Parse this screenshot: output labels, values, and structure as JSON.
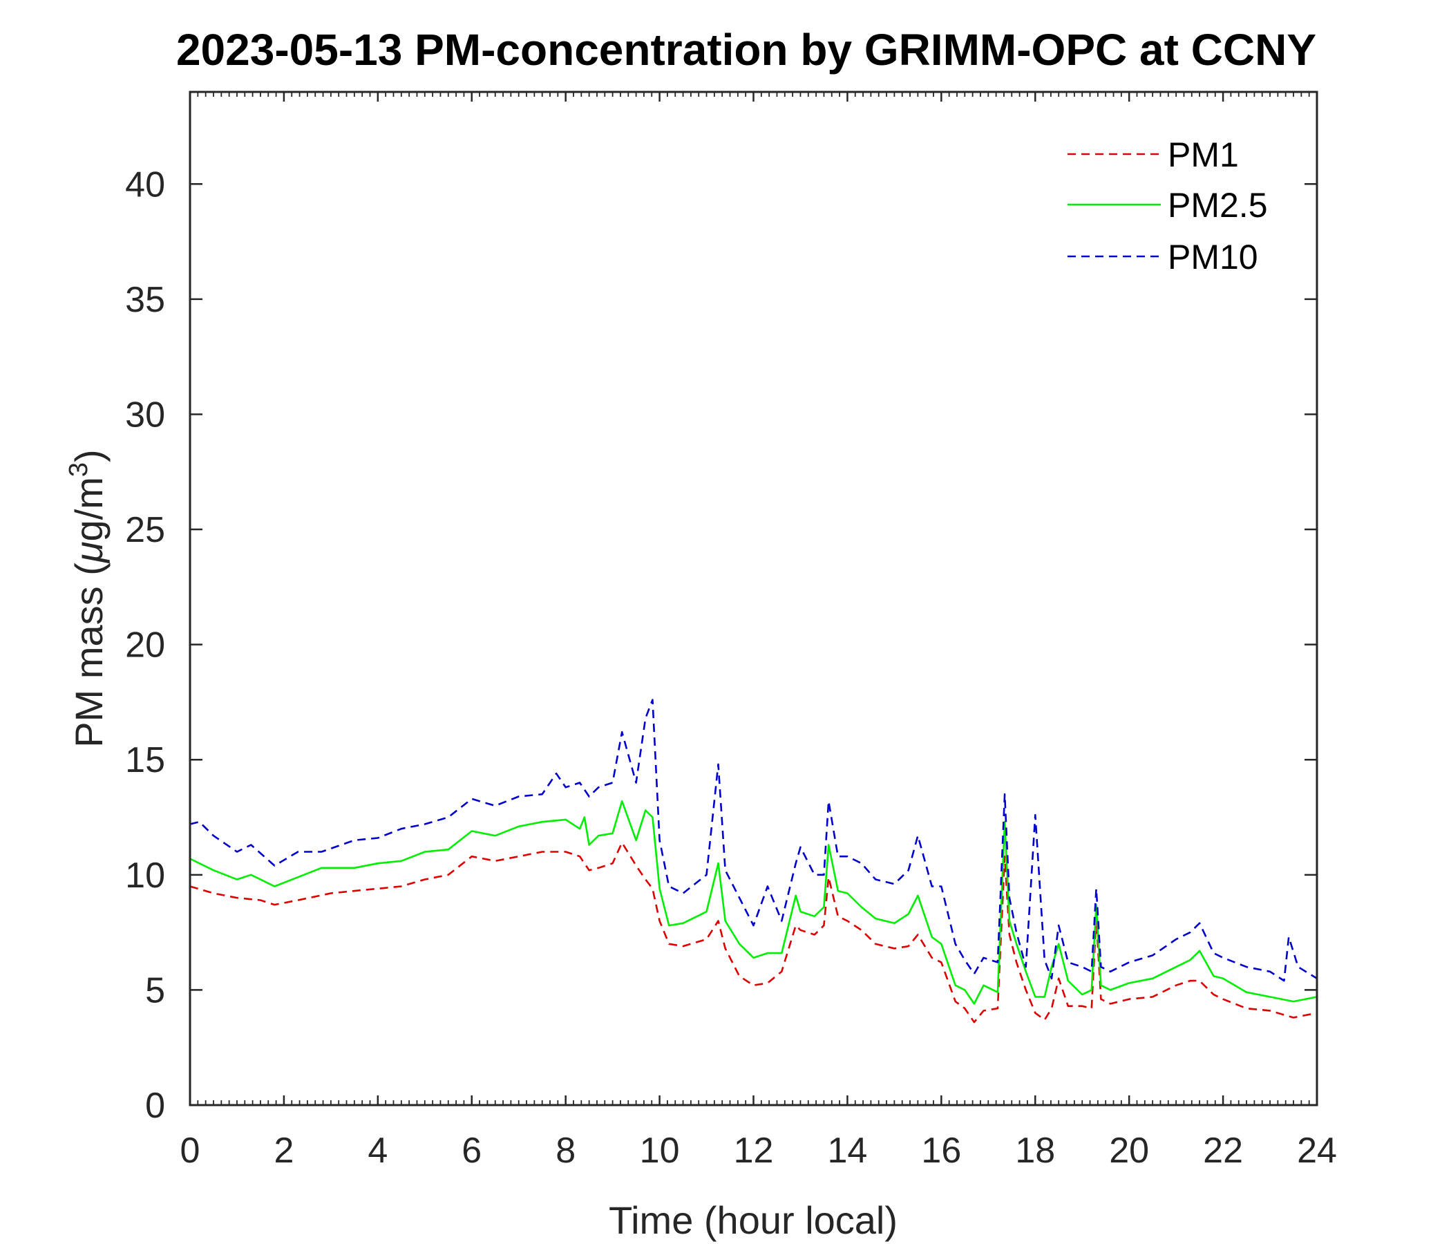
{
  "chart_data": {
    "type": "line",
    "title": "2023-05-13 PM-concentration by GRIMM-OPC at CCNY",
    "xlabel": "Time (hour local)",
    "ylabel_main": "PM mass (",
    "ylabel_mu": "μ",
    "ylabel_unit": "g/m",
    "ylabel_sup": "3",
    "ylabel_close": ")",
    "xlim": [
      0,
      24
    ],
    "ylim": [
      0,
      44
    ],
    "xticks": [
      "0",
      "2",
      "4",
      "6",
      "8",
      "10",
      "12",
      "14",
      "16",
      "18",
      "20",
      "22",
      "24"
    ],
    "yticks": [
      "0",
      "5",
      "10",
      "15",
      "20",
      "25",
      "30",
      "35",
      "40"
    ],
    "legend_position": "top-right",
    "series": [
      {
        "name": "PM1",
        "color": "#dd0000",
        "style": "dashed",
        "x": [
          0,
          0.5,
          1,
          1.5,
          1.8,
          2.3,
          3,
          3.5,
          4,
          4.5,
          5,
          5.5,
          6,
          6.5,
          7,
          7.5,
          8,
          8.3,
          8.5,
          8.7,
          9,
          9.2,
          9.5,
          9.7,
          9.85,
          10,
          10.2,
          10.5,
          11,
          11.25,
          11.4,
          11.7,
          12,
          12.3,
          12.6,
          12.9,
          13,
          13.3,
          13.5,
          13.6,
          13.8,
          14,
          14.3,
          14.6,
          15,
          15.3,
          15.5,
          15.8,
          16,
          16.3,
          16.5,
          16.7,
          16.9,
          17.2,
          17.35,
          17.45,
          17.6,
          17.8,
          18,
          18.2,
          18.35,
          18.5,
          18.7,
          19,
          19.2,
          19.3,
          19.4,
          19.6,
          20,
          20.5,
          21,
          21.3,
          21.5,
          21.8,
          22,
          22.5,
          23,
          23.5,
          24
        ],
        "y": [
          9.5,
          9.2,
          9.0,
          8.9,
          8.7,
          8.9,
          9.2,
          9.3,
          9.4,
          9.5,
          9.8,
          10.0,
          10.8,
          10.6,
          10.8,
          11.0,
          11.0,
          10.8,
          10.2,
          10.3,
          10.5,
          11.4,
          10.4,
          9.8,
          9.4,
          8.0,
          7.0,
          6.9,
          7.2,
          8.0,
          6.8,
          5.6,
          5.2,
          5.3,
          5.8,
          7.8,
          7.6,
          7.4,
          7.8,
          9.9,
          8.2,
          8.0,
          7.6,
          7.0,
          6.8,
          6.9,
          7.4,
          6.4,
          6.2,
          4.5,
          4.2,
          3.6,
          4.1,
          4.2,
          10.8,
          7.4,
          6.2,
          5.0,
          4.0,
          3.7,
          4.2,
          5.5,
          4.3,
          4.3,
          4.2,
          8.1,
          4.6,
          4.4,
          4.6,
          4.7,
          5.2,
          5.4,
          5.4,
          4.8,
          4.6,
          4.2,
          4.1,
          3.8,
          4.0
        ]
      },
      {
        "name": "PM2.5",
        "color": "#00ee00",
        "style": "solid",
        "x": [
          0,
          0.5,
          1,
          1.3,
          1.8,
          2.3,
          2.8,
          3.5,
          4,
          4.5,
          5,
          5.5,
          6,
          6.5,
          7,
          7.5,
          8,
          8.3,
          8.4,
          8.5,
          8.7,
          9,
          9.2,
          9.5,
          9.7,
          9.85,
          10,
          10.2,
          10.5,
          11,
          11.25,
          11.4,
          11.7,
          12,
          12.3,
          12.6,
          12.9,
          13,
          13.3,
          13.5,
          13.6,
          13.8,
          14,
          14.3,
          14.6,
          15,
          15.3,
          15.5,
          15.8,
          16,
          16.3,
          16.5,
          16.7,
          16.9,
          17.2,
          17.35,
          17.45,
          17.6,
          17.8,
          18,
          18.2,
          18.35,
          18.5,
          18.7,
          19,
          19.2,
          19.3,
          19.4,
          19.6,
          20,
          20.5,
          21,
          21.3,
          21.5,
          21.8,
          22,
          22.5,
          23,
          23.5,
          24
        ],
        "y": [
          10.7,
          10.2,
          9.8,
          10.0,
          9.5,
          9.9,
          10.3,
          10.3,
          10.5,
          10.6,
          11.0,
          11.1,
          11.9,
          11.7,
          12.1,
          12.3,
          12.4,
          12.0,
          12.5,
          11.3,
          11.7,
          11.8,
          13.2,
          11.5,
          12.8,
          12.5,
          9.4,
          7.8,
          7.9,
          8.4,
          10.5,
          8.0,
          7.0,
          6.4,
          6.6,
          6.6,
          9.1,
          8.4,
          8.2,
          8.6,
          11.3,
          9.3,
          9.2,
          8.6,
          8.1,
          7.9,
          8.3,
          9.1,
          7.3,
          7.0,
          5.2,
          5.0,
          4.4,
          5.2,
          4.9,
          12.3,
          8.0,
          7.0,
          5.8,
          4.7,
          4.7,
          6.0,
          7.0,
          5.4,
          4.8,
          5.0,
          8.7,
          5.2,
          5.0,
          5.3,
          5.5,
          6.0,
          6.3,
          6.7,
          5.6,
          5.5,
          4.9,
          4.7,
          4.5,
          4.7
        ]
      },
      {
        "name": "PM10",
        "color": "#0000cc",
        "style": "dashed",
        "x": [
          0,
          0.2,
          0.5,
          1,
          1.3,
          1.8,
          2.3,
          2.8,
          3.5,
          4,
          4.5,
          5,
          5.5,
          6,
          6.5,
          7,
          7.5,
          7.8,
          8,
          8.3,
          8.5,
          8.7,
          9,
          9.2,
          9.5,
          9.7,
          9.85,
          10,
          10.2,
          10.5,
          11,
          11.25,
          11.4,
          11.7,
          12,
          12.3,
          12.6,
          12.9,
          13,
          13.3,
          13.5,
          13.6,
          13.8,
          14,
          14.3,
          14.6,
          15,
          15.3,
          15.5,
          15.8,
          16,
          16.3,
          16.5,
          16.7,
          16.9,
          17.2,
          17.35,
          17.45,
          17.6,
          17.8,
          18,
          18.2,
          18.35,
          18.5,
          18.7,
          19,
          19.2,
          19.3,
          19.4,
          19.6,
          20,
          20.5,
          21,
          21.3,
          21.5,
          21.8,
          22,
          22.5,
          23,
          23.3,
          23.4,
          23.6,
          24
        ],
        "y": [
          12.2,
          12.3,
          11.7,
          11.0,
          11.3,
          10.4,
          11.0,
          11.0,
          11.5,
          11.6,
          12.0,
          12.2,
          12.5,
          13.3,
          13.0,
          13.4,
          13.5,
          14.4,
          13.8,
          14.0,
          13.4,
          13.8,
          14.0,
          16.2,
          14.0,
          16.8,
          17.6,
          11.5,
          9.5,
          9.2,
          10.0,
          14.8,
          10.2,
          9.0,
          7.8,
          9.5,
          8.0,
          10.5,
          11.2,
          10.0,
          10.0,
          13.2,
          10.8,
          10.8,
          10.5,
          9.8,
          9.6,
          10.2,
          11.7,
          9.5,
          9.5,
          7.0,
          6.3,
          5.7,
          6.4,
          6.2,
          13.5,
          9.0,
          7.5,
          6.0,
          12.6,
          6.3,
          5.5,
          7.8,
          6.2,
          6.0,
          5.8,
          9.4,
          6.0,
          5.8,
          6.2,
          6.5,
          7.2,
          7.5,
          7.9,
          6.6,
          6.4,
          6.0,
          5.8,
          5.4,
          7.3,
          6.0,
          5.5
        ]
      }
    ]
  }
}
